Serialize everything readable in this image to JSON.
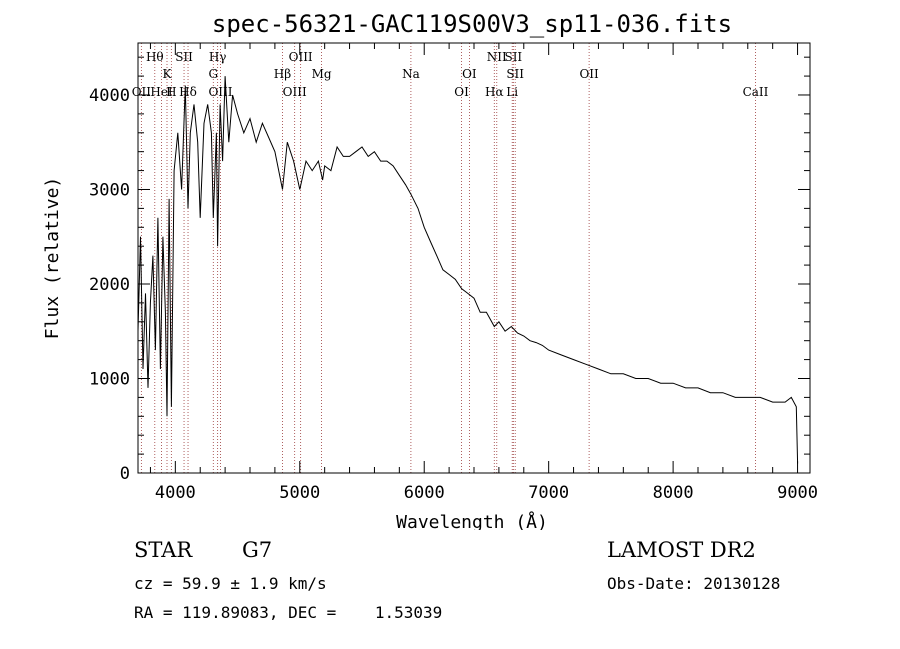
{
  "chart_data": {
    "type": "line",
    "title": "spec-56321-GAC119S00V3_sp11-036.fits",
    "xlabel": "Wavelength (Å)",
    "ylabel": "Flux (relative)",
    "xlim": [
      3700,
      9100
    ],
    "ylim": [
      0,
      4550
    ],
    "xticks": [
      4000,
      5000,
      6000,
      7000,
      8000,
      9000
    ],
    "yticks": [
      0,
      1000,
      2000,
      3000,
      4000
    ],
    "series": [
      {
        "x": [
          3700,
          3720,
          3740,
          3760,
          3780,
          3800,
          3820,
          3840,
          3860,
          3880,
          3900,
          3920,
          3933,
          3950,
          3968,
          3990,
          4020,
          4050,
          4080,
          4102,
          4120,
          4150,
          4180,
          4200,
          4230,
          4260,
          4290,
          4305,
          4330,
          4340,
          4360,
          4380,
          4400,
          4430,
          4460,
          4500,
          4550,
          4600,
          4650,
          4700,
          4750,
          4800,
          4861,
          4900,
          4950,
          5000,
          5050,
          5100,
          5150,
          5183,
          5200,
          5250,
          5300,
          5350,
          5400,
          5450,
          5500,
          5550,
          5600,
          5650,
          5700,
          5750,
          5800,
          5850,
          5893,
          5950,
          6000,
          6050,
          6100,
          6150,
          6200,
          6250,
          6300,
          6350,
          6400,
          6450,
          6500,
          6563,
          6600,
          6650,
          6700,
          6750,
          6800,
          6850,
          6900,
          6950,
          7000,
          7100,
          7200,
          7300,
          7400,
          7500,
          7600,
          7700,
          7800,
          7900,
          8000,
          8100,
          8200,
          8300,
          8400,
          8500,
          8600,
          8700,
          8800,
          8900,
          8950,
          8990,
          9000
        ],
        "y": [
          1500,
          2500,
          1100,
          1900,
          900,
          1800,
          2300,
          1300,
          2700,
          1100,
          2500,
          1700,
          600,
          2900,
          700,
          3200,
          3600,
          3000,
          4100,
          2800,
          3600,
          3900,
          3500,
          2700,
          3700,
          3900,
          3600,
          2700,
          3600,
          2400,
          3900,
          3300,
          4200,
          3500,
          4000,
          3800,
          3600,
          3750,
          3500,
          3700,
          3550,
          3400,
          3000,
          3500,
          3300,
          3000,
          3300,
          3200,
          3300,
          3100,
          3250,
          3200,
          3450,
          3350,
          3350,
          3400,
          3450,
          3350,
          3400,
          3300,
          3300,
          3250,
          3150,
          3050,
          2950,
          2800,
          2600,
          2450,
          2300,
          2150,
          2100,
          2050,
          1950,
          1900,
          1850,
          1700,
          1700,
          1550,
          1600,
          1500,
          1550,
          1480,
          1450,
          1400,
          1380,
          1350,
          1300,
          1250,
          1200,
          1150,
          1100,
          1050,
          1050,
          1000,
          1000,
          950,
          950,
          900,
          900,
          850,
          850,
          800,
          800,
          800,
          750,
          750,
          800,
          700,
          100
        ]
      }
    ],
    "lines": [
      {
        "wl": 3727,
        "label": "OII",
        "row": 3
      },
      {
        "wl": 3835,
        "label": "Hθ",
        "row": 0
      },
      {
        "wl": 3889,
        "label": "HeI",
        "row": 3
      },
      {
        "wl": 3933,
        "label": "K",
        "row": 1
      },
      {
        "wl": 3968,
        "label": "H",
        "row": 3
      },
      {
        "wl": 4070,
        "label": "SII",
        "row": 0
      },
      {
        "wl": 4102,
        "label": "Hδ",
        "row": 3
      },
      {
        "wl": 4305,
        "label": "G",
        "row": 2
      },
      {
        "wl": 4340,
        "label": "Hγ",
        "row": 0
      },
      {
        "wl": 4363,
        "label": "OIII",
        "row": 3
      },
      {
        "wl": 4861,
        "label": "Hβ",
        "row": 2
      },
      {
        "wl": 4959,
        "label": "OIII",
        "row": 3
      },
      {
        "wl": 5007,
        "label": "OIII",
        "row": 0
      },
      {
        "wl": 5175,
        "label": "Mg",
        "row": 2
      },
      {
        "wl": 5893,
        "label": "Na",
        "row": 1
      },
      {
        "wl": 6300,
        "label": "OI",
        "row": 3
      },
      {
        "wl": 6363,
        "label": "OI",
        "row": 2
      },
      {
        "wl": 6563,
        "label": "Hα",
        "row": 3
      },
      {
        "wl": 6583,
        "label": "NII",
        "row": 0
      },
      {
        "wl": 6707,
        "label": "Li",
        "row": 3
      },
      {
        "wl": 6716,
        "label": "SII",
        "row": 0
      },
      {
        "wl": 6731,
        "label": "SII",
        "row": 2
      },
      {
        "wl": 7325,
        "label": "OII",
        "row": 2
      },
      {
        "wl": 8662,
        "label": "CaII",
        "row": 3
      }
    ],
    "grid": false,
    "line_color": "#000000",
    "marker_color": "#9b3a3a"
  },
  "info": {
    "class": "STAR",
    "subclass": "G7",
    "survey": "LAMOST DR2",
    "cz": "cz = 59.9 ± 1.9 km/s",
    "obs_date": "Obs-Date: 20130128",
    "coords": "RA = 119.89083, DEC =    1.53039"
  }
}
